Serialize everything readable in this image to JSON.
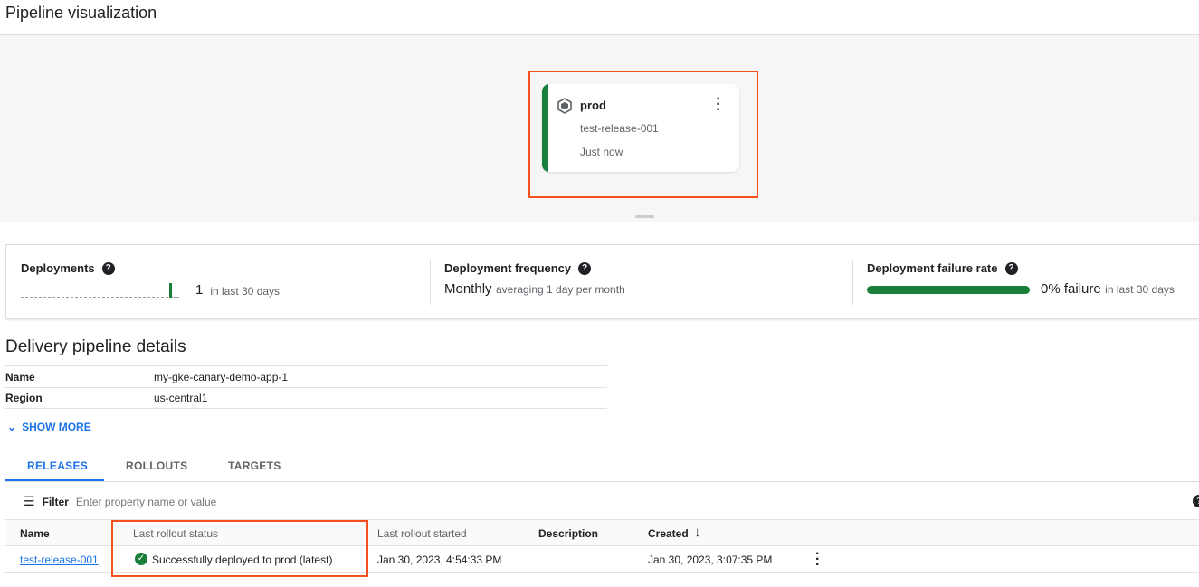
{
  "header": {
    "title": "Pipeline visualization"
  },
  "pipeline": {
    "target": {
      "name": "prod",
      "release": "test-release-001",
      "time": "Just now",
      "status_color": "#188038"
    }
  },
  "metrics": [
    {
      "label": "Deployments",
      "value": "1",
      "suffix": "in last 30 days"
    },
    {
      "label": "Deployment frequency",
      "value": "Monthly",
      "suffix": "averaging 1 day per month"
    },
    {
      "label": "Deployment failure rate",
      "value": "0% failure",
      "suffix": "in last 30 days",
      "success_percent": 100
    }
  ],
  "details": {
    "heading": "Delivery pipeline details",
    "rows": [
      {
        "k": "Name",
        "v": "my-gke-canary-demo-app-1"
      },
      {
        "k": "Region",
        "v": "us-central1"
      }
    ],
    "show_more": "SHOW MORE"
  },
  "tabs": [
    {
      "label": "RELEASES",
      "active": true
    },
    {
      "label": "ROLLOUTS"
    },
    {
      "label": "TARGETS"
    }
  ],
  "filter": {
    "label": "Filter",
    "placeholder": "Enter property name or value"
  },
  "table": {
    "columns": [
      "Name",
      "Last rollout status",
      "Last rollout started",
      "Description",
      "Created"
    ],
    "rows": [
      {
        "name": "test-release-001",
        "status": "Successfully deployed to prod (latest)",
        "started": "Jan 30, 2023, 4:54:33 PM",
        "description": "",
        "created": "Jan 30, 2023, 3:07:35 PM"
      }
    ]
  },
  "colors": {
    "accent": "#1a73e8",
    "success": "#188038",
    "highlight": "#f4511e"
  }
}
